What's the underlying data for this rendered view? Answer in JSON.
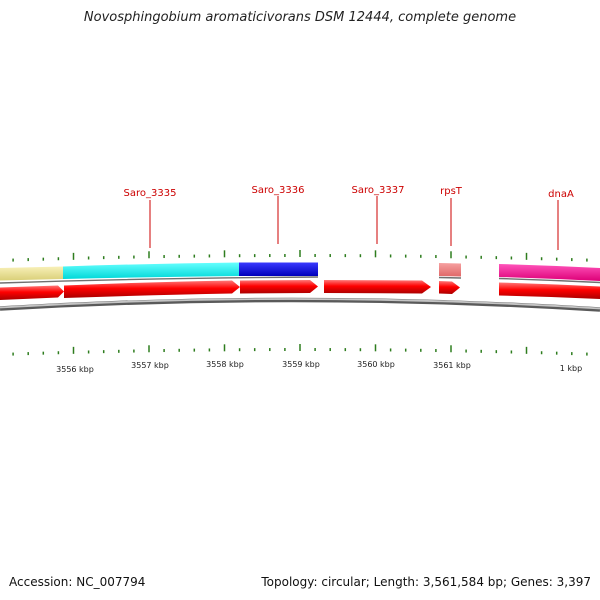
{
  "title": "Novosphingobium aromaticivorans DSM 12444, complete genome",
  "footer": {
    "accession": "Accession: NC_007794",
    "summary": "Topology: circular; Length: 3,561,584 bp; Genes: 3,397"
  },
  "genes": [
    {
      "label": "Saro_3335"
    },
    {
      "label": "Saro_3336"
    },
    {
      "label": "Saro_3337"
    },
    {
      "label": "rpsT"
    },
    {
      "label": "dnaA"
    }
  ],
  "tick_labels": [
    "3556 kbp",
    "3557 kbp",
    "3558 kbp",
    "3559 kbp",
    "3560 kbp",
    "3561 kbp",
    "1 kbp"
  ],
  "colors": {
    "gene_label": "#cc0000",
    "tick": "#2e7d1e",
    "cds": "#ff0000",
    "backbone": "#808080",
    "feature_khaki": "#f0e68c",
    "feature_cyan": "#00ffff",
    "feature_blue": "#0000ff",
    "feature_salmon": "#f08080",
    "feature_magenta": "#ff1493"
  }
}
